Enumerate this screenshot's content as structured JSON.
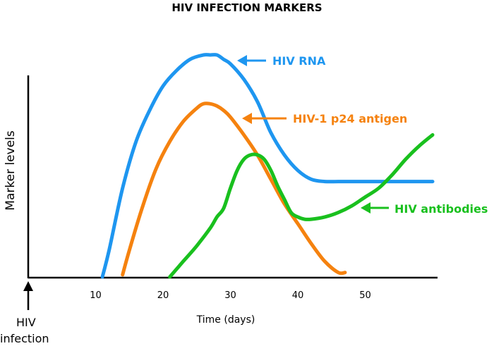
{
  "chart_data": {
    "type": "line",
    "title": "HIV INFECTION MARKERS",
    "xlabel": "Time (days)",
    "ylabel": "Marker levels",
    "xlim": [
      0,
      60
    ],
    "ylim": [
      0,
      100
    ],
    "x_ticks": [
      10,
      20,
      30,
      40,
      50
    ],
    "origin_annotation": {
      "line1": "HIV",
      "line2": "infection"
    },
    "series": [
      {
        "name": "HIV RNA",
        "label": "HIV RNA",
        "color": "#1E96F0",
        "x": [
          11,
          12,
          14,
          16,
          18,
          20,
          22,
          24,
          26,
          27,
          28,
          29,
          30,
          32,
          34,
          36,
          38,
          40,
          42,
          44,
          46,
          48,
          50,
          55,
          60
        ],
        "y": [
          0,
          12,
          40,
          61,
          75,
          86,
          93,
          98,
          100,
          100,
          100,
          98,
          96,
          89,
          79,
          65,
          55,
          48,
          44,
          43,
          43,
          43,
          43,
          43,
          43
        ]
      },
      {
        "name": "HIV-1 p24 antigen",
        "label": "HIV-1 p24 antigen",
        "color": "#F5820F",
        "x": [
          14,
          15,
          17,
          19,
          21,
          23,
          25,
          26,
          27,
          28,
          29,
          30,
          32,
          34,
          36,
          38,
          40,
          42,
          44,
          46,
          47
        ],
        "y": [
          1,
          12,
          32,
          49,
          61,
          70,
          76,
          78,
          78,
          77,
          75,
          72,
          64,
          55,
          44,
          33,
          24,
          15,
          7,
          2,
          2
        ]
      },
      {
        "name": "HIV antibodies",
        "label": "HIV antibodies",
        "color": "#19C01E",
        "x": [
          21,
          23,
          25,
          27,
          28,
          29,
          30,
          31,
          32,
          33,
          34,
          35,
          36,
          37,
          38,
          39,
          40,
          41,
          42,
          44,
          46,
          48,
          50,
          52,
          54,
          56,
          58,
          60
        ],
        "y": [
          0,
          7,
          14,
          22,
          27,
          31,
          40,
          48,
          53,
          55,
          55,
          53,
          48,
          41,
          35,
          29,
          27,
          26,
          26,
          27,
          29,
          32,
          36,
          40,
          46,
          53,
          59,
          64
        ]
      }
    ],
    "annotations": [
      {
        "series": "HIV RNA",
        "text": "HIV RNA",
        "color": "#1E96F0"
      },
      {
        "series": "HIV-1 p24 antigen",
        "text": "HIV-1 p24 antigen",
        "color": "#F5820F"
      },
      {
        "series": "HIV antibodies",
        "text": "HIV antibodies",
        "color": "#19C01E"
      }
    ]
  }
}
